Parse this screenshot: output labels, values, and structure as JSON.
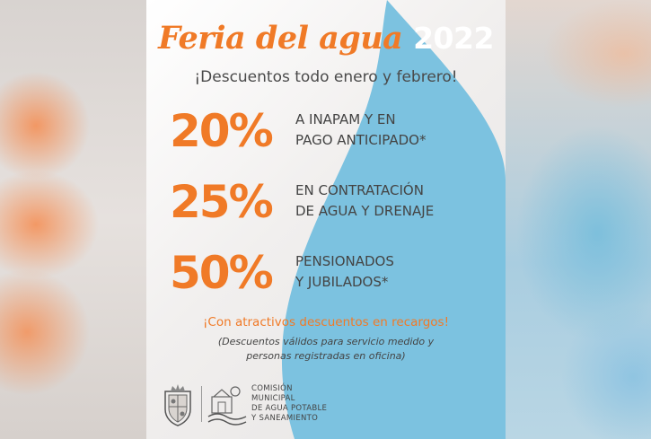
{
  "title": {
    "main": "Feria del agua",
    "year": "2022"
  },
  "subtitle": "¡Descuentos todo enero y febrero!",
  "offers": [
    {
      "percent": "20%",
      "line1": "A INAPAM Y EN",
      "line2": "PAGO ANTICIPADO*"
    },
    {
      "percent": "25%",
      "line1": "EN CONTRATACIÓN",
      "line2": "DE AGUA Y DRENAJE"
    },
    {
      "percent": "50%",
      "line1": "PENSIONADOS",
      "line2": "Y JUBILADOS*"
    }
  ],
  "promo": "¡Con atractivos descuentos en recargos!",
  "note": {
    "line1": "(Descuentos válidos para servicio medido y",
    "line2": "personas registradas en oficina)"
  },
  "logo": {
    "icons": [
      "municipal-coat-of-arms-icon",
      "water-commission-logo-icon"
    ],
    "text": [
      "COMISIÓN",
      "MUNICIPAL",
      "DE AGUA POTABLE",
      "Y SANEAMIENTO"
    ]
  },
  "colors": {
    "accent": "#f07a27",
    "water": "#7cc2e0",
    "text": "#444444"
  }
}
